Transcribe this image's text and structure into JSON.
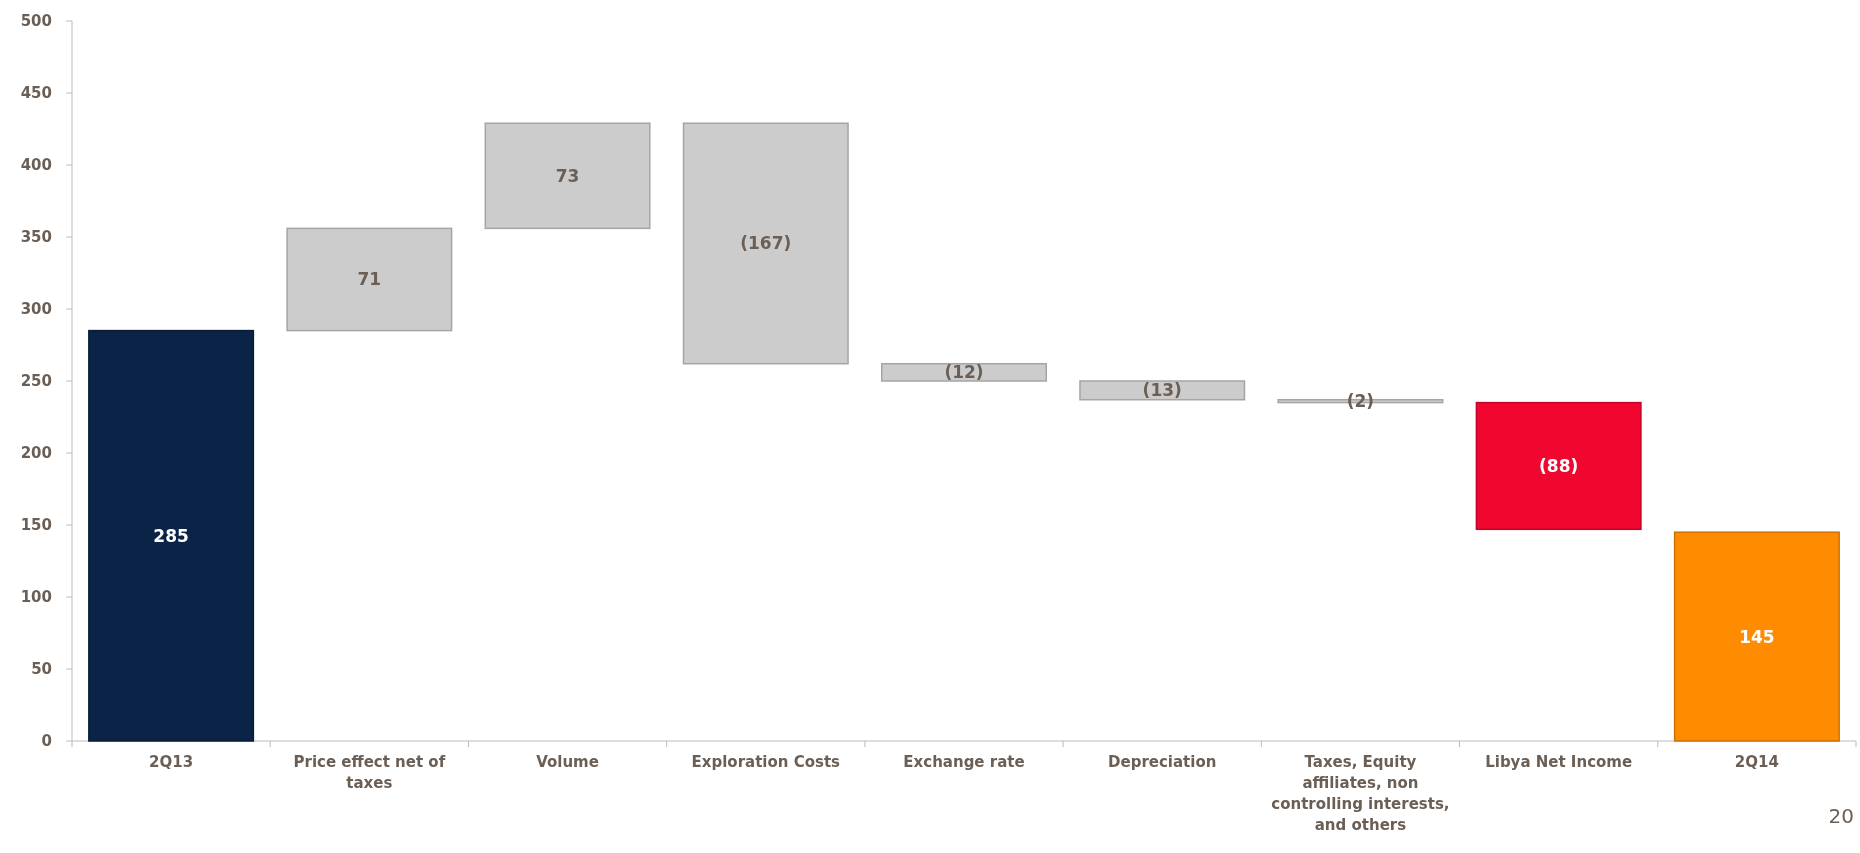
{
  "chart_data": {
    "type": "bar",
    "categories": [
      "2Q13",
      "Price effect net of taxes",
      "Volume",
      "Exploration Costs",
      "Exchange rate",
      "Depreciation",
      "Taxes, Equity affiliates, non controlling interests, and others",
      "Libya Net Income",
      "2Q14"
    ],
    "values": [
      285,
      71,
      73,
      -167,
      -12,
      -13,
      -2,
      -88,
      145
    ],
    "base": [
      0,
      285,
      356,
      429,
      262,
      250,
      237,
      235,
      0
    ],
    "colors": [
      "#0b2346",
      "#cccccc",
      "#cccccc",
      "#cccccc",
      "#cccccc",
      "#cccccc",
      "#cccccc",
      "#f0062f",
      "#ff8c00"
    ],
    "value_labels": [
      "285",
      "71",
      "73",
      "(167)",
      "(12)",
      "(13)",
      "(2)",
      "(88)",
      "145"
    ],
    "ylim": [
      0,
      500
    ],
    "yticks": [
      0,
      50,
      100,
      150,
      200,
      250,
      300,
      350,
      400,
      450,
      500
    ],
    "grid": false,
    "annotations": [
      {
        "text": "20"
      }
    ]
  }
}
